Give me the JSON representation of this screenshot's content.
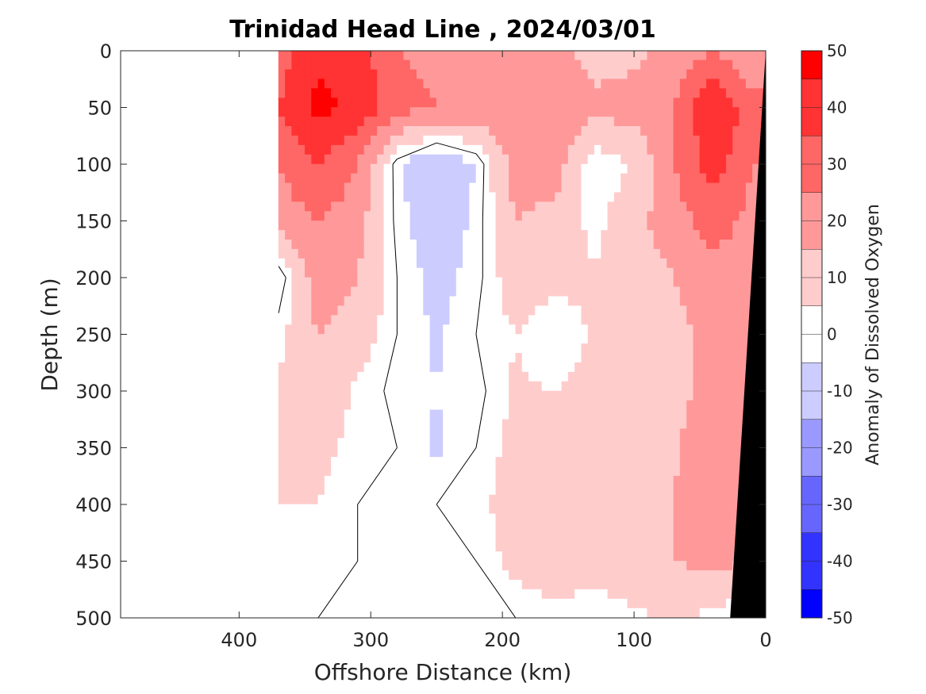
{
  "chart_data": {
    "type": "heatmap",
    "title": "Trinidad Head Line , 2024/03/01",
    "xlabel": "Offshore Distance (km)",
    "ylabel": "Depth (m)",
    "colorbar_label": "Anomaly of Dissolved Oxygen",
    "xlim": [
      490,
      0
    ],
    "ylim": [
      0,
      500
    ],
    "x_reversed": true,
    "y_reversed": true,
    "x_ticks": [
      400,
      300,
      200,
      100,
      0
    ],
    "y_ticks": [
      0,
      50,
      100,
      150,
      200,
      250,
      300,
      350,
      400,
      450,
      500
    ],
    "colorbar_ticks": [
      50,
      40,
      30,
      20,
      10,
      0,
      -10,
      -20,
      -30,
      -40,
      -50
    ],
    "colorbar_range": [
      -50,
      50
    ],
    "data_extent_km": [
      370,
      0
    ],
    "colormap": "blue-white-red",
    "colors": {
      "positive_max": "#ff0000",
      "negative_max": "#0000ff",
      "zero": "#ffffff",
      "bathymetry": "#000000"
    },
    "grid": false,
    "zero_contour": true,
    "bathymetry_mask": [
      {
        "x": 0,
        "y": 0
      },
      {
        "x": 27,
        "y": 500
      }
    ],
    "grid_x": [
      370,
      340,
      310,
      280,
      250,
      220,
      190,
      160,
      130,
      100,
      70,
      40,
      10
    ],
    "grid_y": [
      0,
      50,
      100,
      150,
      200,
      250,
      300,
      350,
      400,
      450,
      500
    ],
    "values": [
      [
        30,
        42,
        40,
        25,
        22,
        18,
        18,
        18,
        10,
        12,
        18,
        25,
        15
      ],
      [
        35,
        48,
        42,
        30,
        25,
        22,
        25,
        25,
        18,
        20,
        25,
        45,
        30
      ],
      [
        25,
        35,
        25,
        -3,
        -15,
        -5,
        20,
        20,
        0,
        5,
        25,
        40,
        25
      ],
      [
        20,
        25,
        20,
        -2,
        -12,
        -3,
        15,
        12,
        2,
        12,
        20,
        30,
        22
      ],
      [
        -5,
        22,
        15,
        0,
        -8,
        -2,
        10,
        8,
        6,
        10,
        15,
        20,
        20
      ],
      [
        3,
        15,
        10,
        0,
        -6,
        0,
        5,
        0,
        6,
        10,
        12,
        18,
        18
      ],
      [
        6,
        10,
        4,
        -2,
        -5,
        -2,
        6,
        5,
        8,
        8,
        12,
        18,
        18
      ],
      [
        6,
        8,
        2,
        0,
        -6,
        0,
        8,
        10,
        10,
        12,
        14,
        20,
        18
      ],
      [
        5,
        5,
        0,
        0,
        0,
        2,
        10,
        12,
        10,
        12,
        15,
        20,
        18
      ],
      [
        5,
        4,
        0,
        0,
        0,
        0,
        8,
        10,
        10,
        12,
        15,
        18,
        15
      ],
      [
        5,
        0,
        0,
        -3,
        0,
        0,
        0,
        3,
        0,
        3,
        6,
        3,
        -3
      ]
    ]
  }
}
